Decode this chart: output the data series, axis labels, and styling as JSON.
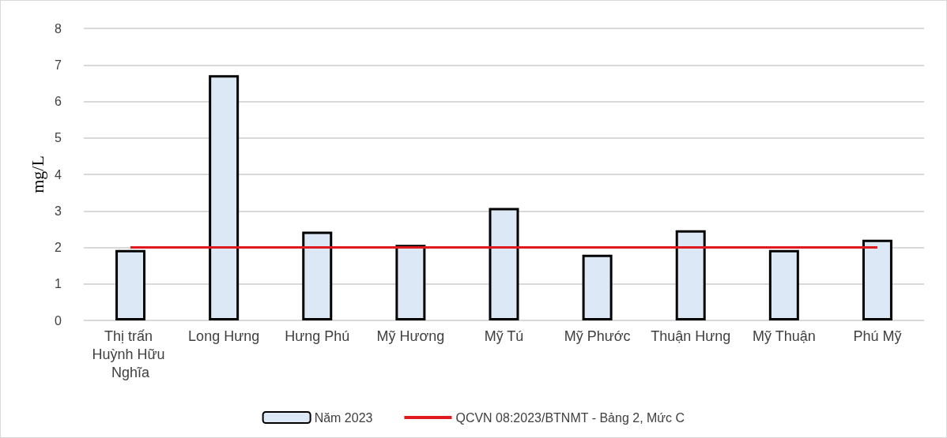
{
  "chart_data": {
    "type": "bar",
    "categories": [
      "Thị trấn Huỳnh Hữu Nghĩa",
      "Long Hưng",
      "Hưng Phú",
      "Mỹ Hương",
      "Mỹ Tú",
      "Mỹ Phước",
      "Thuận Hưng",
      "Mỹ Thuận",
      "Phú Mỹ"
    ],
    "series": [
      {
        "name": "Năm 2023",
        "color": "#dce8f5",
        "values": [
          1.93,
          6.72,
          2.43,
          2.07,
          3.08,
          1.8,
          2.47,
          1.93,
          2.21
        ]
      },
      {
        "name": "QCVN 08:2023/BTNMT - Bảng 2, Mức C",
        "type": "line",
        "color": "#e0191f",
        "values": [
          2,
          2,
          2,
          2,
          2,
          2,
          2,
          2,
          2
        ]
      }
    ],
    "ylabel": "mg/L",
    "ylim": [
      0,
      8
    ],
    "yticks": [
      0,
      1,
      2,
      3,
      4,
      5,
      6,
      7,
      8
    ],
    "grid": "y",
    "legend": "bottom",
    "marker": "none"
  }
}
